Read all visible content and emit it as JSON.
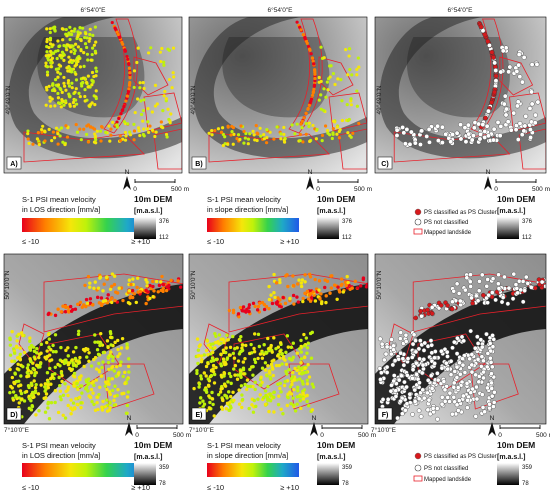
{
  "top_row": {
    "top_coord": "6°54'0\"E",
    "side_coord": "49°49'0\"N",
    "panels": [
      "A)",
      "B)",
      "C)"
    ],
    "legends": [
      {
        "line1": "S-1 PSI mean velocity",
        "line2": "in LOS direction [mm/a]",
        "min": "≤ -10",
        "max": "≥ +10"
      },
      {
        "line1": "S-1 PSI mean velocity",
        "line2": "in slope direction [mm/a]",
        "min": "≤ -10",
        "max": "≥ +10"
      }
    ],
    "dem": {
      "title": "10m DEM",
      "unit": "[m.a.s.l.]",
      "max": "376",
      "min": "112"
    }
  },
  "bottom_row": {
    "bottom_coord": "7°10'0\"E",
    "side_coord": "50°10'0\"N",
    "panels": [
      "D)",
      "E)",
      "F)"
    ],
    "legends": [
      {
        "line1": "S-1 PSI mean velocity",
        "line2": "in LOS direction [mm/a]",
        "min": "≤ -10",
        "max": "≥ +10"
      },
      {
        "line1": "S-1 PSI mean velocity",
        "line2": "in slope direction [mm/a]",
        "min": "≤ -10",
        "max": "≥ +10"
      }
    ],
    "dem": {
      "title": "10m DEM",
      "unit": "[m.a.s.l.]",
      "max": "359",
      "min": "78"
    }
  },
  "scale": {
    "zero": "0",
    "end": "500 m",
    "north": "N"
  },
  "classification_legend": {
    "classified": "PS classified as PS Cluster",
    "not_classified": "PS not classified",
    "mapped": "Mapped landslide"
  },
  "colors": {
    "classified": "#d7191c",
    "landslide_outline": "#e8202a",
    "velocity_ramp": [
      "#e8001c",
      "#ff7f00",
      "#f5e60a",
      "#bff20a",
      "#35d24d",
      "#1fa9c7",
      "#2059e8"
    ]
  }
}
